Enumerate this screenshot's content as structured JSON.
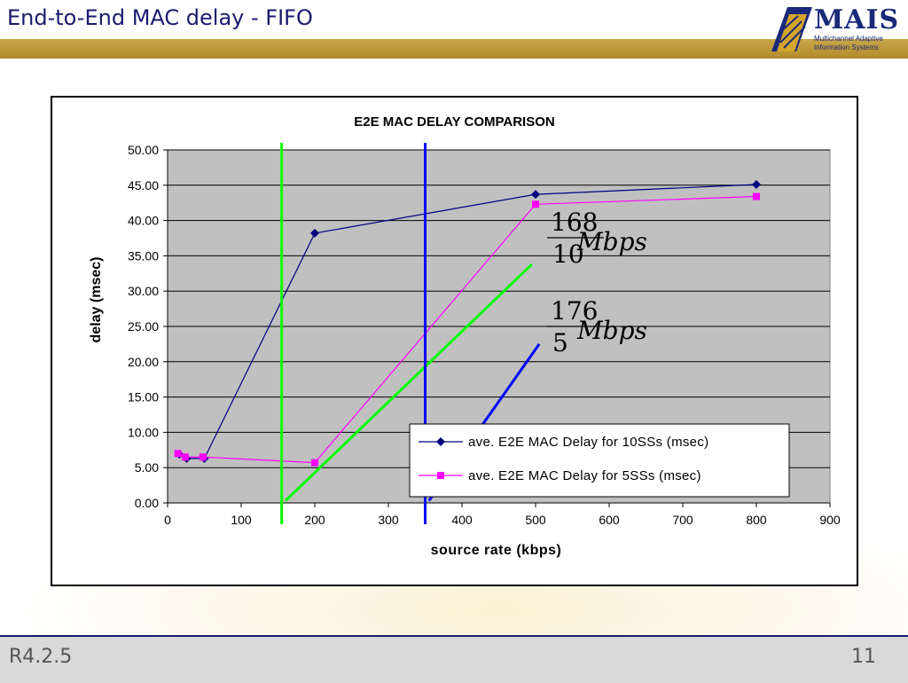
{
  "slide": {
    "title": "End-to-End MAC delay - FIFO",
    "footer_left": "R4.2.5",
    "page_number": "11"
  },
  "logo": {
    "name": "MAIS",
    "line1": "Multichannel Adaptive",
    "line2": "Information Systems"
  },
  "colors": {
    "title": "#1a1a6e",
    "header_bar": "#b38b2a",
    "plot_bg": "#c0c0c0",
    "series1": "#000080",
    "series2": "#ff00ff",
    "green": "#00ff00",
    "blue": "#0000ff"
  },
  "chart_data": {
    "type": "line",
    "title": "E2E MAC DELAY COMPARISON",
    "xlabel": "source rate (kbps)",
    "ylabel": "delay (msec)",
    "xlim": [
      0,
      900
    ],
    "ylim": [
      0,
      50
    ],
    "xticks": [
      0,
      100,
      200,
      300,
      400,
      500,
      600,
      700,
      800,
      900
    ],
    "yticks": [
      "0.00",
      "5.00",
      "10.00",
      "15.00",
      "20.00",
      "25.00",
      "30.00",
      "35.00",
      "40.00",
      "45.00",
      "50.00"
    ],
    "grid": "horizontal",
    "legend": "bottom-right",
    "series": [
      {
        "name": "ave. E2E MAC Delay for 10SSs (msec)",
        "color": "#000080",
        "marker": "diamond",
        "x": [
          16,
          26,
          50,
          200,
          500,
          800
        ],
        "y": [
          6.9,
          6.3,
          6.3,
          38.2,
          43.7,
          45.1
        ]
      },
      {
        "name": "ave. E2E MAC Delay for 5SSs (msec)",
        "color": "#ff00ff",
        "marker": "square",
        "x": [
          14,
          24,
          48,
          200,
          500,
          800
        ],
        "y": [
          7.0,
          6.5,
          6.5,
          5.7,
          42.3,
          43.4
        ]
      }
    ],
    "vertical_lines": [
      {
        "x": 155,
        "color": "#00ff00"
      },
      {
        "x": 350,
        "color": "#0000ff"
      }
    ],
    "annotation_lines": [
      {
        "color": "#00ff00",
        "x": [
          160,
          495
        ],
        "y": [
          0.3,
          33.8
        ]
      },
      {
        "color": "#0000ff",
        "x": [
          355,
          505
        ],
        "y": [
          0.3,
          22.5
        ]
      }
    ],
    "annotations": [
      {
        "id": "green",
        "numerator": "168",
        "denominator": "10",
        "text": "Mbps"
      },
      {
        "id": "blue",
        "numerator": "176",
        "denominator": "5",
        "text": "Mbps"
      }
    ]
  }
}
